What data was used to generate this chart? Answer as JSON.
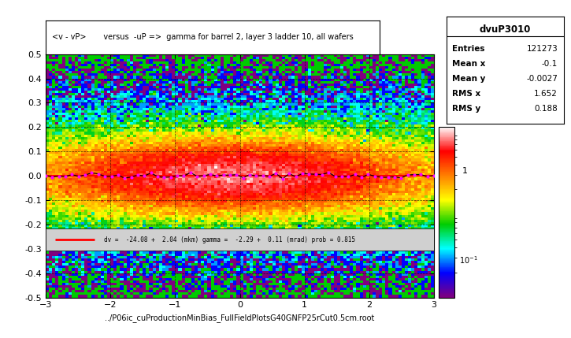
{
  "title": "<v - vP>       versus  -uP =>  gamma for barrel 2, layer 3 ladder 10, all wafers",
  "xlabel": "../P06ic_cuProductionMinBias_FullFieldPlotsG40GNFP25rCut0.5cm.root",
  "ylabel": "",
  "xlim": [
    -3,
    3
  ],
  "ylim": [
    -0.5,
    0.5
  ],
  "xticks": [
    -3,
    -2,
    -1,
    0,
    1,
    2,
    3
  ],
  "yticks": [
    -0.5,
    -0.4,
    -0.3,
    -0.2,
    -0.1,
    0.0,
    0.1,
    0.2,
    0.3,
    0.4,
    0.5
  ],
  "stats_title": "dvuP3010",
  "stats_entries": "121273",
  "stats_mean_x": "-0.1",
  "stats_mean_y": "-0.0027",
  "stats_rms_x": "1.652",
  "stats_rms_y": "0.188",
  "fit_label": "dv =  -24.08 +  2.04 (mkm) gamma =  -2.29 +  0.11 (mrad) prob = 0.815",
  "fit_color": "#ff0000",
  "background_color": "#ffffff",
  "plot_bg": "#00cc00",
  "seed": 42
}
